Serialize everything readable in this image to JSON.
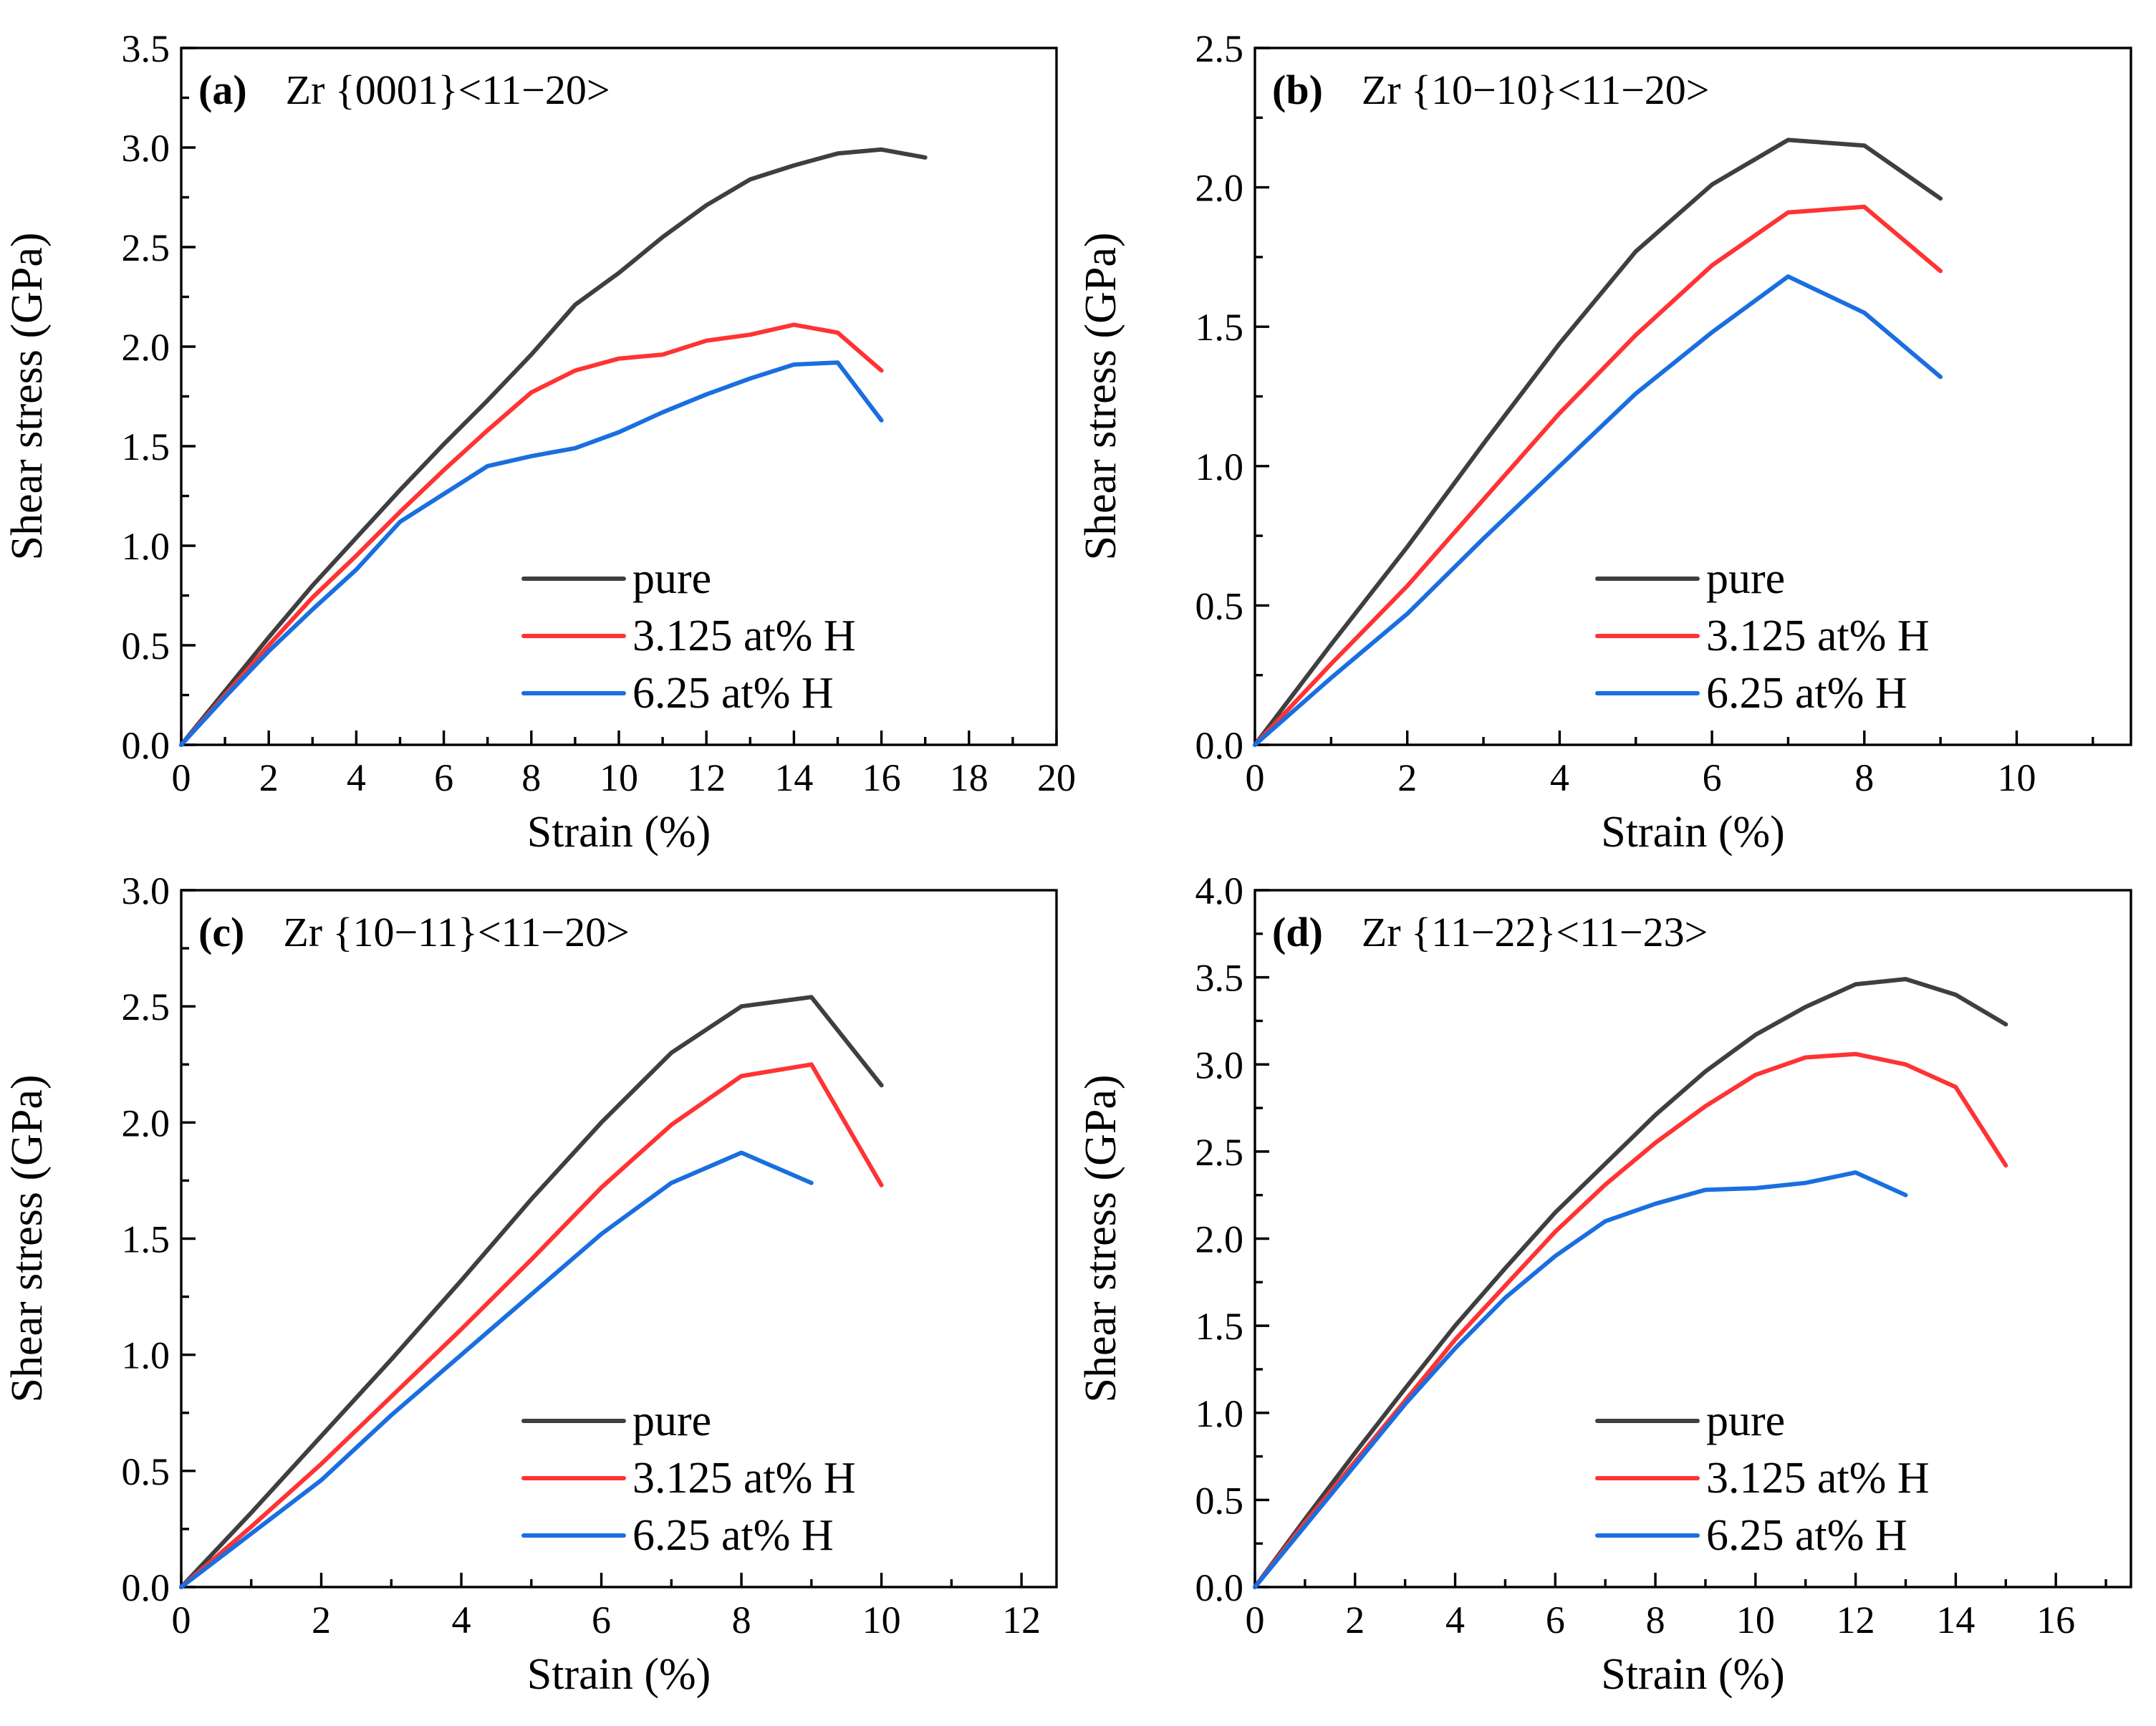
{
  "chart_data": [
    {
      "type": "line",
      "panel_label": "(a)",
      "title": "Zr {0001}<11−20>",
      "xlabel": "Strain (%)",
      "ylabel": "Shear stress (GPa)",
      "xlim": [
        0,
        20
      ],
      "ylim": [
        0,
        3.5
      ],
      "xticks": [
        0,
        2,
        4,
        6,
        8,
        10,
        12,
        14,
        16,
        18,
        20
      ],
      "xtick_labels": [
        "0",
        "2",
        "4",
        "6",
        "8",
        "10",
        "12",
        "14",
        "16",
        "18",
        "20"
      ],
      "yticks": [
        0,
        0.5,
        1.0,
        1.5,
        2.0,
        2.5,
        3.0,
        3.5
      ],
      "ytick_labels": [
        "0.0",
        "0.5",
        "1.0",
        "1.5",
        "2.0",
        "2.5",
        "3.0",
        "3.5"
      ],
      "legend_position": "lower-right",
      "series": [
        {
          "name": "pure",
          "color": "#3f3f3f",
          "x": [
            0,
            1,
            2,
            3,
            4,
            5,
            6,
            7,
            8,
            9,
            10,
            11,
            12,
            13,
            14,
            15,
            16,
            17
          ],
          "values": [
            0,
            0.27,
            0.54,
            0.8,
            1.04,
            1.28,
            1.51,
            1.73,
            1.96,
            2.21,
            2.37,
            2.55,
            2.71,
            2.84,
            2.91,
            2.97,
            2.99,
            2.95
          ]
        },
        {
          "name": "3.125 at% H",
          "color": "#ff3333",
          "x": [
            0,
            1,
            2,
            3,
            4,
            5,
            6,
            7,
            8,
            9,
            10,
            11,
            12,
            13,
            14,
            15,
            16
          ],
          "values": [
            0,
            0.25,
            0.5,
            0.74,
            0.95,
            1.17,
            1.38,
            1.58,
            1.77,
            1.88,
            1.94,
            1.96,
            2.03,
            2.06,
            2.11,
            2.07,
            1.88
          ]
        },
        {
          "name": "6.25 at% H",
          "color": "#1a6fdf",
          "x": [
            0,
            1,
            2,
            3,
            4,
            5,
            6,
            7,
            8,
            9,
            10,
            11,
            12,
            13,
            14,
            15,
            16
          ],
          "values": [
            0,
            0.24,
            0.47,
            0.68,
            0.88,
            1.12,
            1.26,
            1.4,
            1.45,
            1.49,
            1.57,
            1.67,
            1.76,
            1.84,
            1.91,
            1.92,
            1.63
          ]
        }
      ]
    },
    {
      "type": "line",
      "panel_label": "(b)",
      "title": "Zr {10−10}<11−20>",
      "xlabel": "Strain (%)",
      "ylabel": "Shear stress (GPa)",
      "xlim": [
        0,
        11.5
      ],
      "ylim": [
        0,
        2.5
      ],
      "xticks": [
        0,
        2,
        4,
        6,
        8,
        10
      ],
      "xtick_labels": [
        "0",
        "2",
        "4",
        "6",
        "8",
        "10"
      ],
      "yticks": [
        0,
        0.5,
        1.0,
        1.5,
        2.0,
        2.5
      ],
      "ytick_labels": [
        "0.0",
        "0.5",
        "1.0",
        "1.5",
        "2.0",
        "2.5"
      ],
      "legend_position": "lower-right",
      "series": [
        {
          "name": "pure",
          "color": "#3f3f3f",
          "x": [
            0,
            1,
            2,
            3,
            4,
            5,
            6,
            7,
            8,
            9
          ],
          "values": [
            0,
            0.36,
            0.71,
            1.08,
            1.44,
            1.77,
            2.01,
            2.17,
            2.15,
            1.96
          ]
        },
        {
          "name": "3.125 at% H",
          "color": "#ff3333",
          "x": [
            0,
            1,
            2,
            3,
            4,
            5,
            6,
            7,
            8,
            9
          ],
          "values": [
            0,
            0.29,
            0.57,
            0.88,
            1.19,
            1.47,
            1.72,
            1.91,
            1.93,
            1.7
          ]
        },
        {
          "name": "6.25 at% H",
          "color": "#1a6fdf",
          "x": [
            0,
            1,
            2,
            3,
            4,
            5,
            6,
            7,
            8,
            9
          ],
          "values": [
            0,
            0.24,
            0.47,
            0.74,
            1.0,
            1.26,
            1.48,
            1.68,
            1.55,
            1.32
          ]
        }
      ]
    },
    {
      "type": "line",
      "panel_label": "(c)",
      "title": "Zr {10−11}<11−20>",
      "xlabel": "Strain (%)",
      "ylabel": "Shear stress (GPa)",
      "xlim": [
        0,
        12.5
      ],
      "ylim": [
        0,
        3.0
      ],
      "xticks": [
        0,
        2,
        4,
        6,
        8,
        10,
        12
      ],
      "xtick_labels": [
        "0",
        "2",
        "4",
        "6",
        "8",
        "10",
        "12"
      ],
      "yticks": [
        0,
        0.5,
        1.0,
        1.5,
        2.0,
        2.5,
        3.0
      ],
      "ytick_labels": [
        "0.0",
        "0.5",
        "1.0",
        "1.5",
        "2.0",
        "2.5",
        "3.0"
      ],
      "legend_position": "lower-right",
      "series": [
        {
          "name": "pure",
          "color": "#3f3f3f",
          "x": [
            0,
            1,
            2,
            3,
            4,
            5,
            6,
            7,
            8,
            9,
            10
          ],
          "values": [
            0,
            0.32,
            0.65,
            0.98,
            1.32,
            1.67,
            2.0,
            2.3,
            2.5,
            2.54,
            2.16
          ]
        },
        {
          "name": "3.125 at% H",
          "color": "#ff3333",
          "x": [
            0,
            1,
            2,
            3,
            4,
            5,
            6,
            7,
            8,
            9,
            10
          ],
          "values": [
            0,
            0.26,
            0.53,
            0.82,
            1.11,
            1.41,
            1.72,
            1.99,
            2.2,
            2.25,
            1.73
          ]
        },
        {
          "name": "6.25 at% H",
          "color": "#1a6fdf",
          "x": [
            0,
            1,
            2,
            3,
            4,
            5,
            6,
            7,
            8,
            9
          ],
          "values": [
            0,
            0.23,
            0.46,
            0.74,
            1.0,
            1.26,
            1.52,
            1.74,
            1.87,
            1.74
          ]
        }
      ]
    },
    {
      "type": "line",
      "panel_label": "(d)",
      "title": "Zr {11−22}<11−23>",
      "xlabel": "Strain (%)",
      "ylabel": "Shear stress (GPa)",
      "xlim": [
        0,
        17.5
      ],
      "ylim": [
        0,
        4.0
      ],
      "xticks": [
        0,
        2,
        4,
        6,
        8,
        10,
        12,
        14,
        16
      ],
      "xtick_labels": [
        "0",
        "2",
        "4",
        "6",
        "8",
        "10",
        "12",
        "14",
        "16"
      ],
      "yticks": [
        0,
        0.5,
        1.0,
        1.5,
        2.0,
        2.5,
        3.0,
        3.5,
        4.0
      ],
      "ytick_labels": [
        "0.0",
        "0.5",
        "1.0",
        "1.5",
        "2.0",
        "2.5",
        "3.0",
        "3.5",
        "4.0"
      ],
      "legend_position": "lower-right",
      "series": [
        {
          "name": "pure",
          "color": "#3f3f3f",
          "x": [
            0,
            1,
            2,
            3,
            4,
            5,
            6,
            7,
            8,
            9,
            10,
            11,
            12,
            13,
            14,
            15
          ],
          "values": [
            0,
            0.39,
            0.77,
            1.14,
            1.5,
            1.83,
            2.15,
            2.43,
            2.71,
            2.96,
            3.17,
            3.33,
            3.46,
            3.49,
            3.4,
            3.23
          ]
        },
        {
          "name": "3.125 at% H",
          "color": "#ff3333",
          "x": [
            0,
            1,
            2,
            3,
            4,
            5,
            6,
            7,
            8,
            9,
            10,
            11,
            12,
            13,
            14,
            15
          ],
          "values": [
            0,
            0.37,
            0.72,
            1.07,
            1.42,
            1.73,
            2.04,
            2.31,
            2.55,
            2.76,
            2.94,
            3.04,
            3.06,
            3.0,
            2.87,
            2.42
          ]
        },
        {
          "name": "6.25 at% H",
          "color": "#1a6fdf",
          "x": [
            0,
            1,
            2,
            3,
            4,
            5,
            6,
            7,
            8,
            9,
            10,
            11,
            12,
            13
          ],
          "values": [
            0,
            0.35,
            0.7,
            1.05,
            1.37,
            1.66,
            1.9,
            2.1,
            2.2,
            2.28,
            2.29,
            2.32,
            2.38,
            2.25
          ]
        }
      ]
    }
  ]
}
